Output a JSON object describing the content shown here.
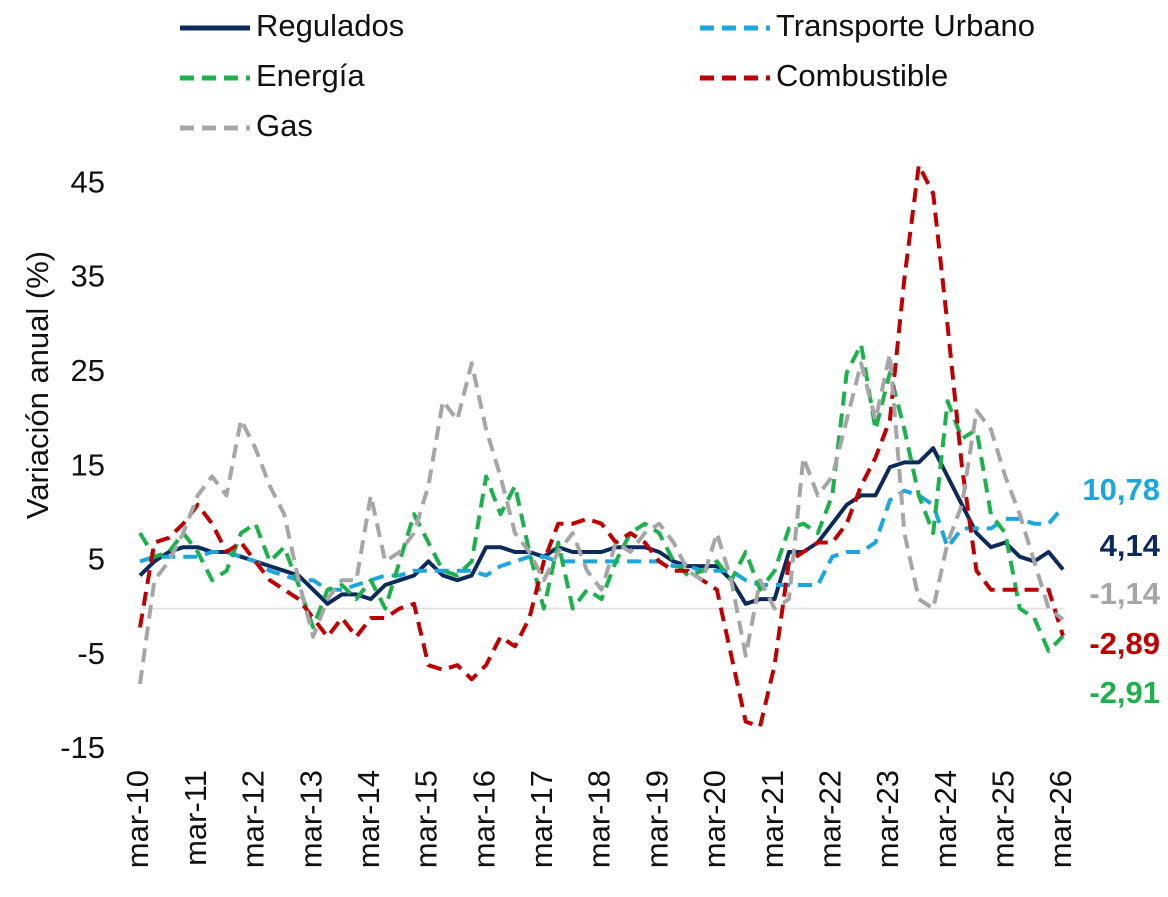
{
  "chart_data": {
    "type": "line",
    "y_label": "Variación anual (%)",
    "categories": [
      "mar-10",
      null,
      null,
      null,
      "mar-11",
      null,
      null,
      null,
      "mar-12",
      null,
      null,
      null,
      "mar-13",
      null,
      null,
      null,
      "mar-14",
      null,
      null,
      null,
      "mar-15",
      null,
      null,
      null,
      "mar-16",
      null,
      null,
      null,
      "mar-17",
      null,
      null,
      null,
      "mar-18",
      null,
      null,
      null,
      "mar-19",
      null,
      null,
      null,
      "mar-20",
      null,
      null,
      null,
      "mar-21",
      null,
      null,
      null,
      "mar-22",
      null,
      null,
      null,
      "mar-23",
      null,
      null,
      null,
      "mar-24",
      null,
      null,
      null,
      "mar-25",
      null,
      null,
      null,
      "mar-26"
    ],
    "ylim": [
      -15,
      50
    ],
    "yticks": [
      -15,
      -5,
      5,
      15,
      25,
      35,
      45
    ],
    "series": [
      {
        "name": "Regulados",
        "color": "#0d2a5c",
        "dash": false,
        "end_label": "4,14",
        "values": [
          3.5,
          5,
          6,
          6.5,
          6.5,
          6,
          6,
          5.5,
          5,
          4.5,
          4,
          3.5,
          2,
          0.5,
          1.5,
          1.5,
          1,
          2.5,
          3,
          3.5,
          5,
          3.5,
          3,
          3.5,
          6.5,
          6.5,
          6,
          6,
          5.5,
          6.5,
          6,
          6,
          6,
          6.5,
          6.5,
          6.5,
          6,
          5,
          4.5,
          4.5,
          4.5,
          3,
          0.5,
          1,
          1,
          6,
          6,
          7,
          9,
          11,
          12,
          12,
          15,
          15.5,
          15.5,
          17,
          14,
          11,
          8,
          6.5,
          7,
          5.5,
          5,
          6,
          4.14
        ]
      },
      {
        "name": "Transporte Urbano",
        "color": "#1aa7e0",
        "dash": true,
        "end_label": "10,78",
        "values": [
          5,
          5.5,
          5.5,
          5.5,
          5.5,
          6,
          6,
          5.5,
          5,
          4,
          3.5,
          3,
          3,
          2,
          2,
          2.5,
          3,
          3.5,
          3.5,
          4,
          4,
          4,
          4,
          4,
          3.5,
          4.5,
          5,
          5.5,
          5.5,
          5,
          5,
          5,
          5,
          5,
          5,
          5,
          5,
          4.5,
          4.5,
          4,
          4,
          4,
          3,
          2.5,
          2.5,
          2.5,
          2.5,
          2.5,
          5.5,
          6,
          6,
          7,
          11.5,
          12.5,
          12,
          11,
          6.5,
          8.5,
          8.5,
          8.5,
          9.5,
          9.5,
          9,
          9,
          10.78
        ]
      },
      {
        "name": "Energía",
        "color": "#1db14b",
        "dash": true,
        "end_label": "-2,91",
        "values": [
          8,
          5.5,
          6,
          8,
          6,
          3,
          4,
          8,
          9,
          5,
          6.5,
          2.5,
          -2,
          2,
          2.5,
          1,
          3,
          0,
          5,
          10,
          7,
          4,
          3.5,
          5,
          14,
          10,
          13,
          6,
          0,
          7,
          0,
          2,
          1,
          5,
          8,
          9,
          8,
          5,
          3.5,
          4,
          5,
          3,
          6,
          2,
          4,
          8.5,
          9,
          8,
          12,
          25,
          28,
          19,
          25,
          19,
          12,
          8,
          22,
          18,
          19,
          10,
          8,
          0,
          -1,
          -4.5,
          -2.91
        ]
      },
      {
        "name": "Combustible",
        "color": "#c00000",
        "dash": true,
        "end_label": "-2,89",
        "values": [
          -2,
          7,
          7.5,
          9,
          11,
          9,
          6,
          7,
          5,
          3,
          2,
          1,
          -1,
          -3,
          -1,
          -3,
          -1,
          -1,
          0,
          0.5,
          -6,
          -6.5,
          -6,
          -7.5,
          -6,
          -3,
          -4,
          -1,
          5,
          9,
          9,
          9.5,
          9,
          7,
          8,
          7,
          5,
          4,
          4,
          3,
          2,
          -5,
          -12,
          -12.5,
          -6,
          5,
          6,
          7,
          7,
          9,
          13,
          16,
          20,
          35,
          47,
          44,
          30,
          15,
          4,
          2,
          2,
          2,
          2,
          2,
          -2.89
        ]
      },
      {
        "name": "Gas",
        "color": "#a6a6a6",
        "dash": true,
        "end_label": "-1,14",
        "values": [
          -8,
          3,
          5,
          8,
          12,
          14,
          12,
          20,
          17,
          13,
          10,
          3,
          -3,
          1,
          3,
          3,
          12,
          5,
          6,
          8,
          13,
          22,
          20,
          26,
          19,
          14,
          8,
          6,
          3,
          6,
          8,
          4,
          2,
          7,
          6,
          8,
          9,
          7,
          4,
          3,
          8,
          3,
          -5,
          3,
          0,
          1,
          16,
          12,
          14,
          20,
          26,
          20,
          27,
          8,
          1,
          0,
          7,
          11,
          21,
          19,
          14,
          10,
          5,
          0,
          -1.14
        ]
      }
    ]
  }
}
